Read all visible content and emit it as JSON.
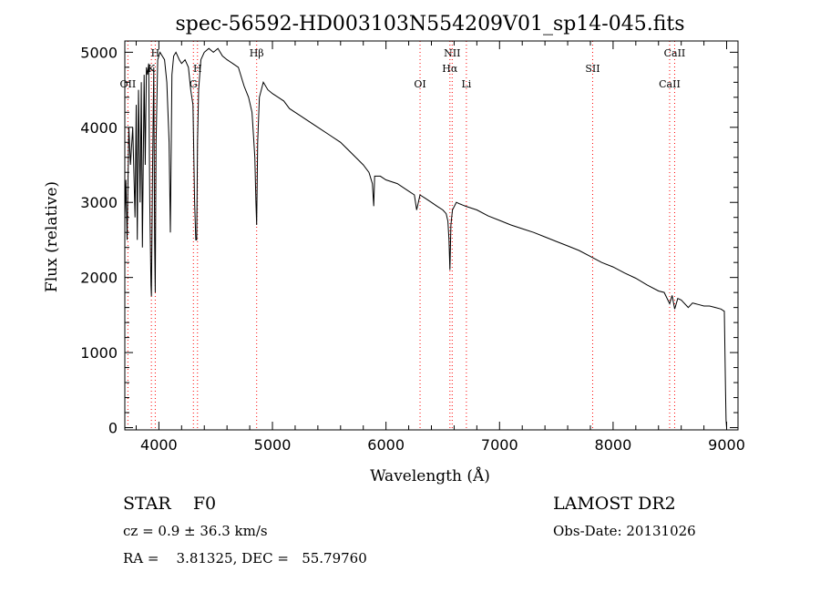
{
  "chart_data": {
    "type": "line",
    "title": "spec-56592-HD003103N554209V01_sp14-045.fits",
    "xlabel": "Wavelength (Å)",
    "ylabel": "Flux (relative)",
    "xlim": [
      3700,
      9100
    ],
    "ylim": [
      -30,
      5150
    ],
    "xticks": [
      4000,
      5000,
      6000,
      7000,
      8000,
      9000
    ],
    "yticks": [
      0,
      1000,
      2000,
      3000,
      4000,
      5000
    ],
    "grid": false,
    "legend": "none",
    "line_color": "#000000",
    "marker_color": "#ff0000",
    "series": [
      {
        "x": [
          3700,
          3710,
          3720,
          3735,
          3750,
          3770,
          3790,
          3800,
          3810,
          3820,
          3835,
          3845,
          3855,
          3870,
          3880,
          3890,
          3900,
          3910,
          3920,
          3930,
          3934,
          3945,
          3955,
          3962,
          3968,
          3975,
          3990,
          4010,
          4030,
          4050,
          4070,
          4090,
          4101,
          4115,
          4130,
          4150,
          4180,
          4200,
          4230,
          4260,
          4280,
          4300,
          4315,
          4325,
          4333,
          4340,
          4350,
          4370,
          4400,
          4440,
          4480,
          4520,
          4560,
          4600,
          4650,
          4700,
          4750,
          4790,
          4820,
          4845,
          4855,
          4861,
          4870,
          4885,
          4920,
          4960,
          5000,
          5050,
          5100,
          5150,
          5200,
          5250,
          5300,
          5400,
          5500,
          5600,
          5700,
          5800,
          5850,
          5880,
          5892,
          5900,
          5950,
          6000,
          6100,
          6200,
          6250,
          6270,
          6300,
          6350,
          6400,
          6450,
          6500,
          6530,
          6545,
          6555,
          6563,
          6572,
          6585,
          6620,
          6650,
          6700,
          6800,
          6900,
          7000,
          7100,
          7200,
          7300,
          7400,
          7500,
          7600,
          7700,
          7800,
          7900,
          8000,
          8100,
          8200,
          8300,
          8400,
          8450,
          8498,
          8520,
          8542,
          8570,
          8600,
          8662,
          8700,
          8750,
          8800,
          8850,
          8900,
          8950,
          8980,
          8990,
          8995,
          9000
        ],
        "y": [
          2800,
          3300,
          2500,
          4000,
          3500,
          4000,
          2800,
          4300,
          2500,
          4500,
          3000,
          4600,
          2400,
          4700,
          3500,
          4800,
          4700,
          4850,
          3000,
          1900,
          1750,
          3500,
          4800,
          2500,
          1800,
          3800,
          4900,
          5000,
          4950,
          4900,
          4600,
          3800,
          2600,
          4700,
          4950,
          5000,
          4900,
          4850,
          4900,
          4800,
          4500,
          4300,
          3000,
          2500,
          2500,
          3800,
          4500,
          4900,
          5000,
          5050,
          5000,
          5050,
          4950,
          4900,
          4850,
          4800,
          4550,
          4400,
          4200,
          3600,
          3000,
          2700,
          3800,
          4400,
          4600,
          4500,
          4450,
          4400,
          4350,
          4250,
          4200,
          4150,
          4100,
          4000,
          3900,
          3800,
          3650,
          3500,
          3400,
          3250,
          2950,
          3350,
          3350,
          3300,
          3250,
          3150,
          3100,
          2900,
          3100,
          3050,
          3000,
          2950,
          2900,
          2850,
          2750,
          2500,
          2100,
          2700,
          2900,
          3000,
          2980,
          2950,
          2900,
          2820,
          2760,
          2700,
          2650,
          2600,
          2540,
          2480,
          2420,
          2360,
          2280,
          2200,
          2140,
          2060,
          1990,
          1900,
          1820,
          1800,
          1650,
          1760,
          1580,
          1720,
          1700,
          1600,
          1660,
          1640,
          1620,
          1620,
          1600,
          1580,
          1550,
          500,
          100,
          0
        ]
      }
    ],
    "vlines": [
      {
        "x": 3727,
        "name": "OII",
        "group": "lower"
      },
      {
        "x": 3934,
        "name": "K",
        "group": "upper"
      },
      {
        "x": 3968,
        "name": "H",
        "group": "upper"
      },
      {
        "x": 4304,
        "name": "G",
        "group": "lower"
      },
      {
        "x": 4340,
        "name": "Hγ",
        "group": "upper"
      },
      {
        "x": 4861,
        "name": "Hβ",
        "group": "upper"
      },
      {
        "x": 6300,
        "name": "OI",
        "group": "lower"
      },
      {
        "x": 6563,
        "name": "Hα",
        "group": "upper"
      },
      {
        "x": 6583,
        "name": "NII",
        "group": "upper"
      },
      {
        "x": 6708,
        "name": "Li",
        "group": "lower"
      },
      {
        "x": 7820,
        "name": "SII",
        "group": "upper"
      },
      {
        "x": 8498,
        "name": "CaII",
        "group": "lower"
      },
      {
        "x": 8542,
        "name": "CaII",
        "group": "upper"
      }
    ],
    "line_labels": [
      {
        "text": "OII",
        "x": 3727,
        "level": 3
      },
      {
        "text": "H",
        "x": 3968,
        "level": 1
      },
      {
        "text": "K",
        "x": 3934,
        "level": 2
      },
      {
        "text": "G",
        "x": 4304,
        "level": 3
      },
      {
        "text": "H",
        "x": 4340,
        "level": 2
      },
      {
        "text": "Hβ",
        "x": 4861,
        "level": 1
      },
      {
        "text": "OI",
        "x": 6300,
        "level": 3
      },
      {
        "text": "NII",
        "x": 6583,
        "level": 1
      },
      {
        "text": "Hα",
        "x": 6563,
        "level": 2
      },
      {
        "text": "Li",
        "x": 6708,
        "level": 3
      },
      {
        "text": "SII",
        "x": 7820,
        "level": 2
      },
      {
        "text": "CaII",
        "x": 8542,
        "level": 1
      },
      {
        "text": "CaII",
        "x": 8498,
        "level": 3
      }
    ]
  },
  "info": {
    "object_line": "STAR    F0",
    "cz_line": "cz = 0.9 ± 36.3 km/s",
    "radec_line": "RA =    3.81325, DEC =   55.79760",
    "survey": "LAMOST DR2",
    "obs_date": "Obs-Date: 20131026"
  }
}
